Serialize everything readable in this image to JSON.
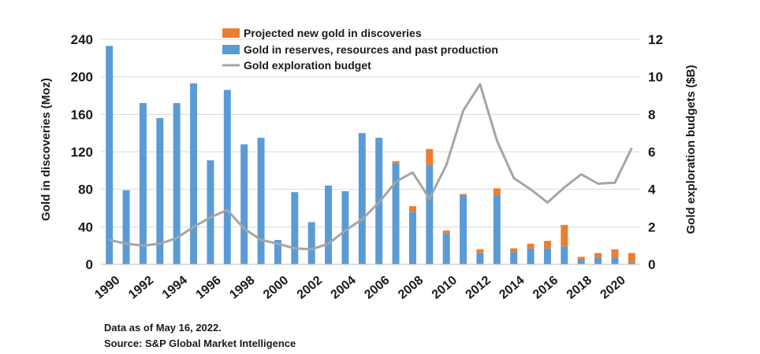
{
  "chart_data": {
    "type": "bar",
    "stacked": true,
    "categories": [
      "1990",
      "1991",
      "1992",
      "1993",
      "1994",
      "1995",
      "1996",
      "1997",
      "1998",
      "1999",
      "2000",
      "2001",
      "2002",
      "2003",
      "2004",
      "2005",
      "2006",
      "2007",
      "2008",
      "2009",
      "2010",
      "2011",
      "2012",
      "2013",
      "2014",
      "2015",
      "2016",
      "2017",
      "2018",
      "2019",
      "2020",
      "2021"
    ],
    "x_tick_labels": [
      "1990",
      "1992",
      "1994",
      "1996",
      "1998",
      "2000",
      "2002",
      "2004",
      "2006",
      "2008",
      "2010",
      "2012",
      "2014",
      "2016",
      "2018",
      "2020"
    ],
    "series": [
      {
        "name": "Gold in reserves, resources and past production",
        "color": "#5B9BD5",
        "axis": "left",
        "values": [
          233,
          79,
          172,
          156,
          172,
          193,
          111,
          186,
          128,
          135,
          26,
          77,
          45,
          84,
          78,
          140,
          135,
          108,
          56,
          106,
          33,
          73,
          12,
          74,
          13,
          17,
          17,
          19,
          5,
          7,
          7,
          2
        ]
      },
      {
        "name": "Projected new gold in discoveries",
        "color": "#ED7D31",
        "axis": "left",
        "values": [
          0,
          0,
          0,
          0,
          0,
          0,
          0,
          0,
          0,
          0,
          0,
          0,
          0,
          0,
          0,
          0,
          0,
          2,
          6,
          17,
          3,
          2,
          4,
          7,
          4,
          5,
          8,
          23,
          3,
          5,
          9,
          10
        ]
      },
      {
        "name": "Gold exploration budget",
        "type": "line",
        "color": "#A5A5A5",
        "axis": "right",
        "values": [
          1.3,
          1.1,
          1.0,
          1.1,
          1.4,
          2.0,
          2.5,
          2.9,
          1.9,
          1.3,
          1.1,
          0.85,
          0.8,
          1.1,
          1.8,
          2.4,
          3.3,
          4.4,
          4.9,
          3.5,
          5.3,
          8.2,
          9.6,
          6.6,
          4.6,
          4.0,
          3.3,
          4.1,
          4.8,
          4.3,
          4.35,
          6.2
        ]
      }
    ],
    "legend_order": [
      "Projected new gold in discoveries",
      "Gold in reserves, resources and past production",
      "Gold exploration budget"
    ],
    "legend_position": "top-center",
    "ylabel": "Gold in discoveries (Moz)",
    "ylim": [
      0,
      240
    ],
    "yticks": [
      0,
      40,
      80,
      120,
      160,
      200,
      240
    ],
    "y2label": "Gold exploration budgets ($B)",
    "y2lim": [
      0,
      12
    ],
    "y2ticks": [
      0,
      2,
      4,
      6,
      8,
      10,
      12
    ],
    "grid": true,
    "grid_color": "#D9D9D9"
  },
  "notes": {
    "date": "Data as of May 16, 2022.",
    "source": "Source: S&P Global Market Intelligence"
  }
}
